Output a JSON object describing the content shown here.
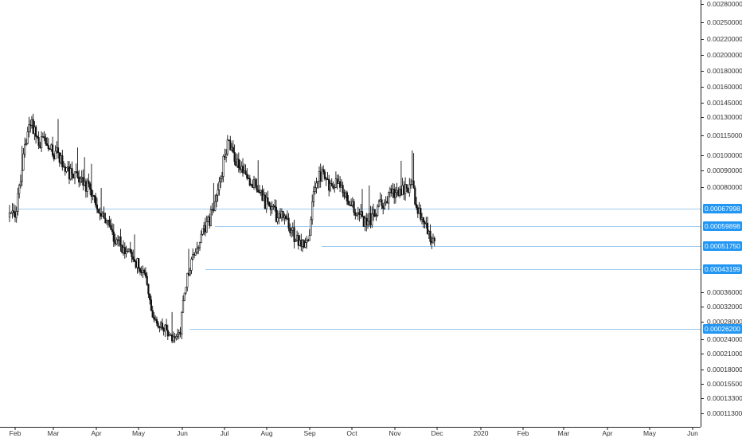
{
  "chart_data": {
    "type": "candlestick",
    "x_labels": [
      "Feb",
      "Mar",
      "Apr",
      "May",
      "Jun",
      "Jul",
      "Aug",
      "Sep",
      "Oct",
      "Nov",
      "Dec",
      "2020",
      "Feb",
      "Mar",
      "Apr",
      "May",
      "Jun"
    ],
    "y_ticks": [
      {
        "label": "0.00280000",
        "value": 0.0028
      },
      {
        "label": "0.00250000",
        "value": 0.0025
      },
      {
        "label": "0.00220000",
        "value": 0.0022
      },
      {
        "label": "0.00200000",
        "value": 0.002
      },
      {
        "label": "0.00180000",
        "value": 0.0018
      },
      {
        "label": "0.00160000",
        "value": 0.0016
      },
      {
        "label": "0.00145000",
        "value": 0.00145
      },
      {
        "label": "0.00130000",
        "value": 0.0013
      },
      {
        "label": "0.00115000",
        "value": 0.00115
      },
      {
        "label": "0.00100000",
        "value": 0.001
      },
      {
        "label": "0.00090000",
        "value": 0.0009
      },
      {
        "label": "0.00080000",
        "value": 0.0008
      },
      {
        "label": "0.00036000",
        "value": 0.00036
      },
      {
        "label": "0.00032000",
        "value": 0.00032
      },
      {
        "label": "0.00028000",
        "value": 0.00028
      },
      {
        "label": "0.00024000",
        "value": 0.00024
      },
      {
        "label": "0.00021000",
        "value": 0.00021
      },
      {
        "label": "0.00018000",
        "value": 0.00018
      },
      {
        "label": "0.00015500",
        "value": 0.000155
      },
      {
        "label": "0.00013300",
        "value": 0.000133
      },
      {
        "label": "0.00011300",
        "value": 0.000113
      }
    ],
    "price_lines": [
      {
        "label": "0.00067998",
        "value": 0.00067998
      },
      {
        "label": "0.00059898",
        "value": 0.00059898
      },
      {
        "label": "0.00051750",
        "value": 0.0005175
      },
      {
        "label": "0.00043199",
        "value": 0.00043199
      },
      {
        "label": "0.00026200",
        "value": 0.000262
      }
    ],
    "last_price": {
      "label": "0.00052028",
      "value": 0.00052028
    },
    "price_path": [
      {
        "d": 0,
        "v": 0.00064
      },
      {
        "d": 5,
        "v": 0.00068
      },
      {
        "d": 10,
        "v": 0.00098
      },
      {
        "d": 14,
        "v": 0.00125
      },
      {
        "d": 18,
        "v": 0.0012
      },
      {
        "d": 22,
        "v": 0.00108
      },
      {
        "d": 27,
        "v": 0.00112
      },
      {
        "d": 31,
        "v": 0.00103
      },
      {
        "d": 36,
        "v": 0.001
      },
      {
        "d": 40,
        "v": 0.0009
      },
      {
        "d": 46,
        "v": 0.00088
      },
      {
        "d": 52,
        "v": 0.00085
      },
      {
        "d": 58,
        "v": 0.00078
      },
      {
        "d": 64,
        "v": 0.00066
      },
      {
        "d": 70,
        "v": 0.00061
      },
      {
        "d": 76,
        "v": 0.00055
      },
      {
        "d": 82,
        "v": 0.00051
      },
      {
        "d": 88,
        "v": 0.00047
      },
      {
        "d": 94,
        "v": 0.00044
      },
      {
        "d": 99,
        "v": 0.00038
      },
      {
        "d": 103,
        "v": 0.00029
      },
      {
        "d": 108,
        "v": 0.00027
      },
      {
        "d": 112,
        "v": 0.00026
      },
      {
        "d": 116,
        "v": 0.00025
      },
      {
        "d": 120,
        "v": 0.00024
      },
      {
        "d": 123,
        "v": 0.00026
      },
      {
        "d": 126,
        "v": 0.00036
      },
      {
        "d": 130,
        "v": 0.00045
      },
      {
        "d": 134,
        "v": 0.00048
      },
      {
        "d": 138,
        "v": 0.00055
      },
      {
        "d": 142,
        "v": 0.0006
      },
      {
        "d": 146,
        "v": 0.00066
      },
      {
        "d": 150,
        "v": 0.00079
      },
      {
        "d": 154,
        "v": 0.00095
      },
      {
        "d": 157,
        "v": 0.00108
      },
      {
        "d": 160,
        "v": 0.00104
      },
      {
        "d": 164,
        "v": 0.00095
      },
      {
        "d": 168,
        "v": 0.0009
      },
      {
        "d": 173,
        "v": 0.00084
      },
      {
        "d": 178,
        "v": 0.0008
      },
      {
        "d": 183,
        "v": 0.00072
      },
      {
        "d": 188,
        "v": 0.00068
      },
      {
        "d": 193,
        "v": 0.00064
      },
      {
        "d": 198,
        "v": 0.00065
      },
      {
        "d": 202,
        "v": 0.00058
      },
      {
        "d": 207,
        "v": 0.00055
      },
      {
        "d": 211,
        "v": 0.00052
      },
      {
        "d": 215,
        "v": 0.00054
      },
      {
        "d": 218,
        "v": 0.0007
      },
      {
        "d": 221,
        "v": 0.00084
      },
      {
        "d": 225,
        "v": 0.00088
      },
      {
        "d": 230,
        "v": 0.00082
      },
      {
        "d": 235,
        "v": 0.00083
      },
      {
        "d": 240,
        "v": 0.00077
      },
      {
        "d": 245,
        "v": 0.0007
      },
      {
        "d": 250,
        "v": 0.00066
      },
      {
        "d": 255,
        "v": 0.00062
      },
      {
        "d": 260,
        "v": 0.00063
      },
      {
        "d": 265,
        "v": 0.00068
      },
      {
        "d": 270,
        "v": 0.00072
      },
      {
        "d": 275,
        "v": 0.00077
      },
      {
        "d": 280,
        "v": 0.00079
      },
      {
        "d": 285,
        "v": 0.00078
      },
      {
        "d": 290,
        "v": 0.0008
      },
      {
        "d": 293,
        "v": 0.0007
      },
      {
        "d": 296,
        "v": 0.00064
      },
      {
        "d": 300,
        "v": 0.00059
      },
      {
        "d": 304,
        "v": 0.00054
      },
      {
        "d": 306,
        "v": 0.00052
      }
    ],
    "title": "",
    "xlabel": "",
    "ylabel": "",
    "ylim": [
      0.0001,
      0.0028
    ],
    "grid": false,
    "legend": "none"
  }
}
